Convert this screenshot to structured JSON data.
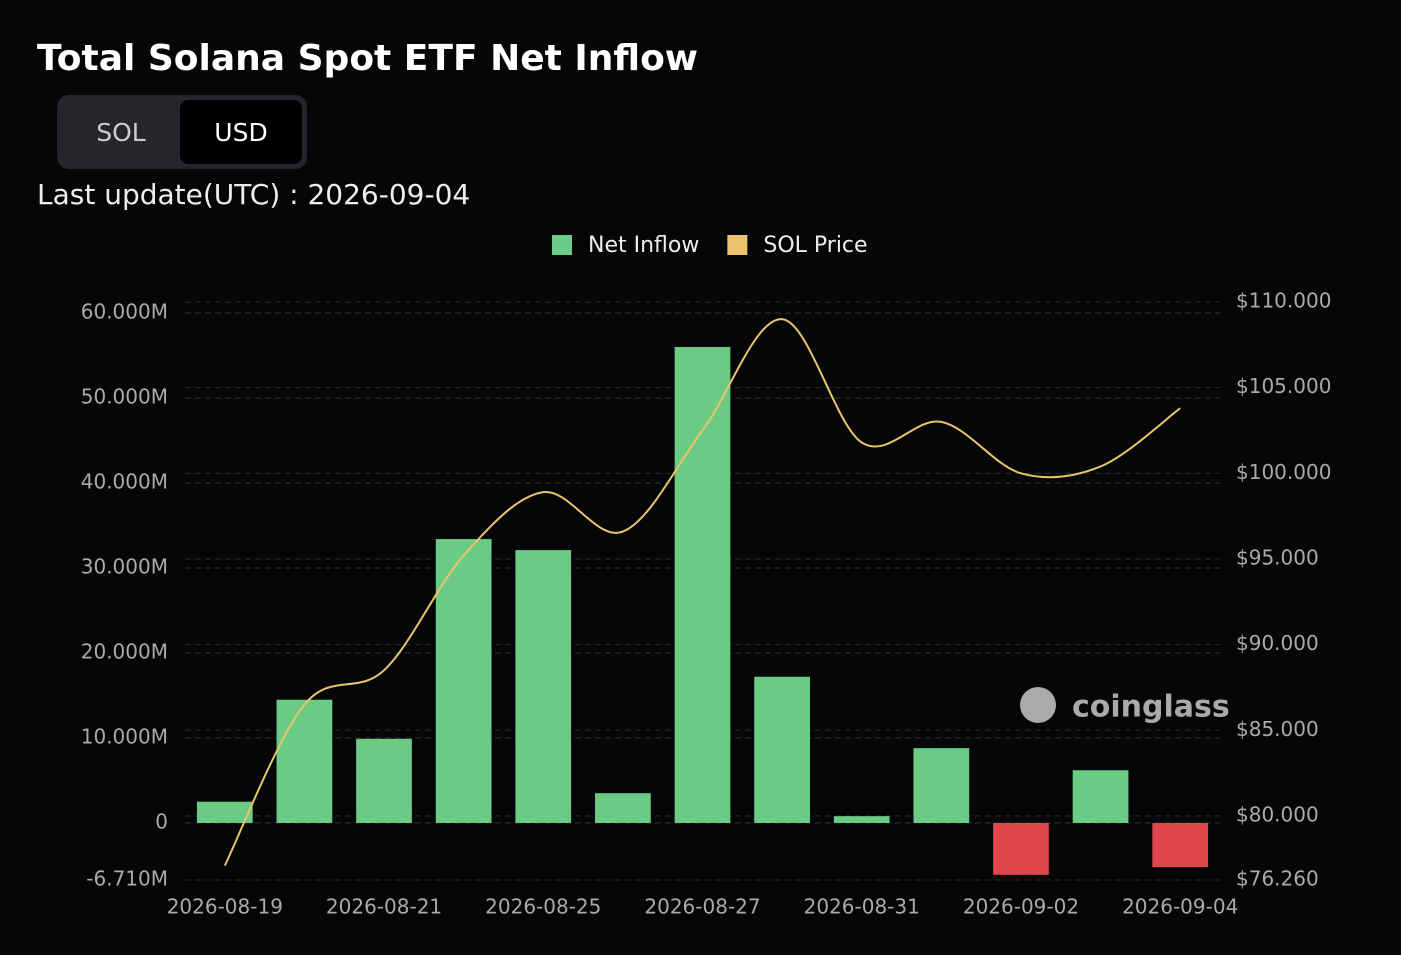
{
  "chart_data": {
    "type": "bar-line",
    "title": "Total Solana Spot ETF Net Inflow",
    "toggle": [
      "SOL",
      "USD"
    ],
    "last_update": "Last update(UTC) : 2026-09-04",
    "watermark": "coinglass",
    "categories": [
      "2026-08-19",
      null,
      "2026-08-21",
      null,
      "2026-08-25",
      null,
      "2026-08-27",
      null,
      "2026-08-31",
      null,
      "2026-09-02",
      null,
      "2026-09-04"
    ],
    "series": [
      {
        "name": "Net Inflow",
        "type": "bar",
        "color": "#6bcb84",
        "negative_color": "#e0474c",
        "values": [
          2500000,
          14500000,
          9900000,
          33400000,
          32100000,
          3500000,
          56000000,
          17200000,
          800000,
          8800000,
          -6100000,
          6200000,
          -5200000
        ]
      },
      {
        "name": "SOL Price",
        "type": "line",
        "axis": "y2",
        "color": "#e9c46a",
        "values": [
          77.1,
          86.5,
          88.5,
          95.2,
          98.9,
          96.6,
          102.5,
          109.0,
          101.8,
          103.0,
          100.0,
          100.4,
          103.8
        ]
      }
    ],
    "ylim": [
      -6710000,
      61290000
    ],
    "yticks": [
      {
        "value": -6710000,
        "label": "-6.710M"
      },
      0,
      {
        "value": 10000000,
        "label": "10.000M"
      },
      {
        "value": 20000000,
        "label": "20.000M"
      },
      {
        "value": 30000000,
        "label": "30.000M"
      },
      {
        "value": 40000000,
        "label": "40.000M"
      },
      {
        "value": 50000000,
        "label": "50.000M"
      },
      {
        "value": 60000000,
        "label": "60.000M"
      }
    ],
    "y2lim": [
      76.26,
      110
    ],
    "y2ticks": [
      {
        "value": 76.26,
        "label": "$76.260"
      },
      {
        "value": 80,
        "label": "$80.000"
      },
      {
        "value": 85,
        "label": "$85.000"
      },
      {
        "value": 90,
        "label": "$90.000"
      },
      {
        "value": 95,
        "label": "$95.000"
      },
      {
        "value": 100,
        "label": "$100.000"
      },
      {
        "value": 105,
        "label": "$105.000"
      },
      {
        "value": 110,
        "label": "$110.000"
      }
    ],
    "grid": true
  }
}
